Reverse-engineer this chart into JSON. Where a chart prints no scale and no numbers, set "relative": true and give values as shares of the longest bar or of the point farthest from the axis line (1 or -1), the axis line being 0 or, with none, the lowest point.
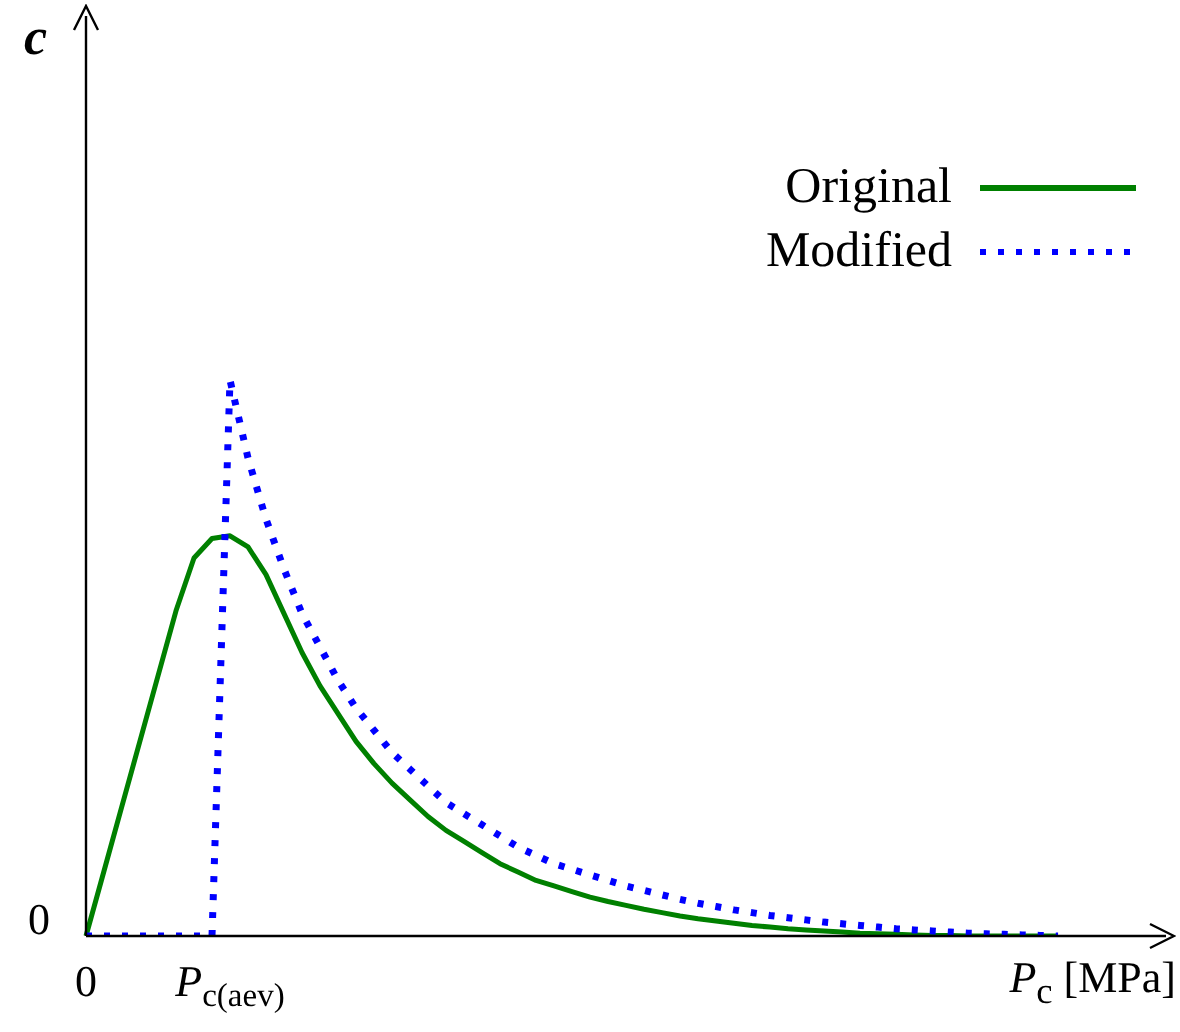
{
  "chart_data": {
    "type": "line",
    "relative": true,
    "xlabel": "P$_{c}$ [MPa]",
    "annotations": [
      "c",
      "0"
    ],
    "legend": "top right",
    "categories": [
      "0",
      null,
      null,
      null,
      null,
      null,
      null,
      null,
      "P$_{c(aev)}$",
      null,
      null,
      null,
      null,
      null,
      null,
      null,
      null,
      null,
      null,
      null,
      null,
      null,
      null,
      null,
      null,
      null,
      null,
      null,
      null,
      null,
      null,
      null,
      null,
      null,
      null,
      null,
      null,
      null,
      null,
      null,
      null,
      null,
      null,
      null,
      null,
      null,
      null,
      null,
      null,
      null,
      null,
      null,
      null,
      null,
      null,
      null,
      null,
      null,
      null,
      null,
      null
    ],
    "series": [
      {
        "name": "Original",
        "color": "#008000",
        "line_style": "solid",
        "values": [
          0,
          0.117,
          0.234,
          0.351,
          0.468,
          0.585,
          0.68,
          0.715,
          0.72,
          0.7,
          0.65,
          0.58,
          0.51,
          0.45,
          0.4,
          0.35,
          0.31,
          0.275,
          0.245,
          0.215,
          0.19,
          0.17,
          0.15,
          0.13,
          0.115,
          0.1,
          0.09,
          0.08,
          0.07,
          0.062,
          0.055,
          0.048,
          0.042,
          0.036,
          0.031,
          0.027,
          0.023,
          0.019,
          0.016,
          0.013,
          0.011,
          0.009,
          0.007,
          0.005,
          0.004,
          0.003,
          0.002,
          0.001,
          0.001,
          0,
          0,
          0,
          0,
          0,
          0,
          null,
          null,
          null,
          null,
          null,
          null
        ]
      },
      {
        "name": "Modified",
        "color": "#0000ff",
        "line_style": "dotted",
        "values": [
          0,
          0,
          0,
          0,
          0,
          0,
          0,
          0,
          1,
          0.86,
          0.75,
          0.66,
          0.58,
          0.52,
          0.46,
          0.41,
          0.37,
          0.33,
          0.3,
          0.27,
          0.24,
          0.22,
          0.2,
          0.18,
          0.16,
          0.145,
          0.13,
          0.12,
          0.11,
          0.1,
          0.09,
          0.082,
          0.074,
          0.066,
          0.059,
          0.053,
          0.047,
          0.042,
          0.037,
          0.033,
          0.029,
          0.025,
          0.022,
          0.019,
          0.016,
          0.013,
          0.011,
          0.009,
          0.007,
          0.005,
          0.004,
          0.003,
          0.002,
          0.001,
          0,
          null,
          null,
          null,
          null,
          null,
          null
        ]
      }
    ]
  }
}
